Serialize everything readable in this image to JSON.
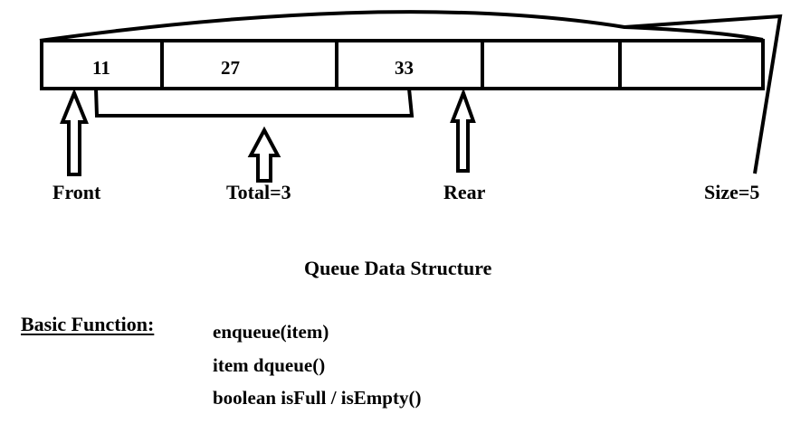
{
  "queue": {
    "cells": [
      "11",
      "27",
      "33",
      "",
      ""
    ]
  },
  "labels": {
    "front": "Front",
    "total": "Total=3",
    "rear": "Rear",
    "size": "Size=5"
  },
  "title": "Queue Data Structure",
  "basic_functions": {
    "heading": "Basic Function:",
    "items": [
      "enqueue(item)",
      "item dqueue()",
      "boolean isFull / isEmpty()"
    ]
  }
}
